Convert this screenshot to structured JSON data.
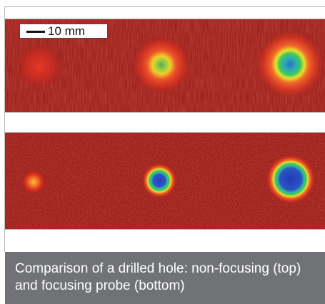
{
  "scalebar": {
    "label": "10 mm"
  },
  "caption": {
    "text": "Comparison of a drilled hole: non-focusing (top) and focusing probe (bottom)"
  },
  "colors": {
    "background_red": "#a3201b",
    "spot_core_blue": "#2a3fbf",
    "spot_ring_green": "#3fc85a",
    "spot_ring_yellow": "#e6e22a",
    "caption_background": "#707275"
  }
}
